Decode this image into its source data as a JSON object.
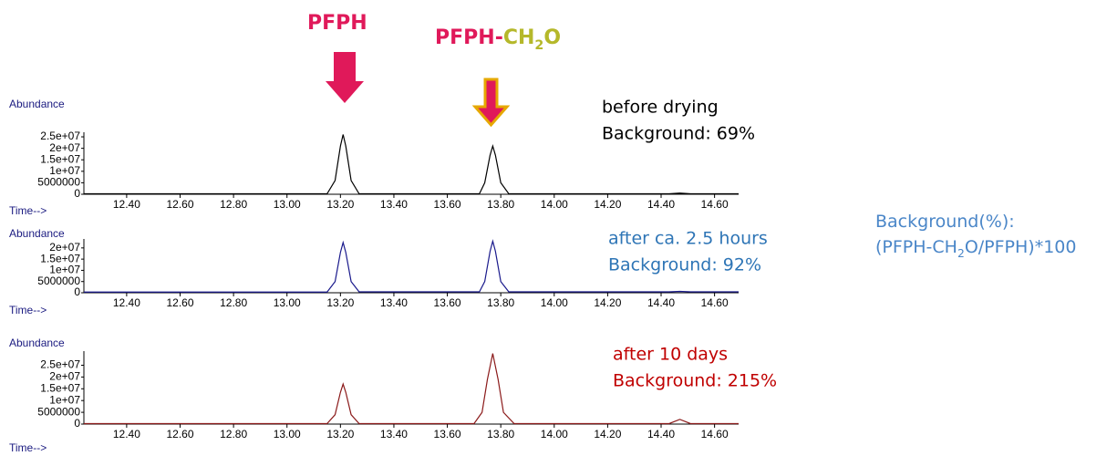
{
  "annotations": {
    "peak_labels": [
      {
        "parts": [
          {
            "text": "PFPH",
            "color": "#e0195a"
          }
        ]
      },
      {
        "parts": [
          {
            "text": "PFPH",
            "color": "#e0195a"
          },
          {
            "text": "-",
            "color": "#e0195a"
          },
          {
            "text": "CH",
            "color": "#b5b82a"
          },
          {
            "text": "2",
            "color": "#b5b82a",
            "sub": true
          },
          {
            "text": "O",
            "color": "#b5b82a"
          }
        ]
      }
    ],
    "formula": {
      "color": "#4a86c8",
      "lines": [
        [
          {
            "text": "Background(%):"
          }
        ],
        [
          {
            "text": "(PFPH-CH"
          },
          {
            "text": "2",
            "sub": true
          },
          {
            "text": "O/PFPH)*100"
          }
        ]
      ]
    }
  },
  "chart_data": [
    {
      "type": "line",
      "ylabel": "Abundance",
      "xlabel": "Time-->",
      "annotation": [
        "before drying",
        "Background: 69%"
      ],
      "annotation_color": "#000000",
      "x": [
        12.24,
        13.15,
        13.18,
        13.2,
        13.21,
        13.22,
        13.24,
        13.27,
        13.72,
        13.74,
        13.76,
        13.77,
        13.78,
        13.8,
        13.83,
        14.43,
        14.47,
        14.51,
        14.69
      ],
      "series": [
        {
          "color": "#000000",
          "values": [
            200000,
            200000,
            6000000,
            21000000,
            26000000,
            21000000,
            6000000,
            200000,
            200000,
            5000000,
            17000000,
            21000000,
            17000000,
            5000000,
            200000,
            200000,
            500000,
            200000,
            200000
          ]
        }
      ],
      "xlim": [
        12.24,
        14.69
      ],
      "ylim": [
        0,
        27000000
      ],
      "xticks": [
        {
          "value": 12.4,
          "label": "12.40"
        },
        {
          "value": 12.6,
          "label": "12.60"
        },
        {
          "value": 12.8,
          "label": "12.80"
        },
        {
          "value": 13.0,
          "label": "13.00"
        },
        {
          "value": 13.2,
          "label": "13.20"
        },
        {
          "value": 13.4,
          "label": "13.40"
        },
        {
          "value": 13.6,
          "label": "13.60"
        },
        {
          "value": 13.8,
          "label": "13.80"
        },
        {
          "value": 14.0,
          "label": "14.00"
        },
        {
          "value": 14.2,
          "label": "14.20"
        },
        {
          "value": 14.4,
          "label": "14.40"
        },
        {
          "value": 14.6,
          "label": "14.60"
        }
      ],
      "yticks": [
        0,
        5000000,
        {
          "value": 10000000,
          "label": "1e+07"
        },
        {
          "value": 15000000,
          "label": "1.5e+07"
        },
        {
          "value": 20000000,
          "label": "2e+07"
        },
        {
          "value": 25000000,
          "label": "2.5e+07"
        }
      ]
    },
    {
      "type": "line",
      "ylabel": "Abundance",
      "xlabel": "Time-->",
      "annotation": [
        "after ca. 2.5 hours",
        "Background: 92%"
      ],
      "annotation_color": "#2e75b6",
      "x": [
        12.24,
        13.15,
        13.18,
        13.2,
        13.21,
        13.22,
        13.24,
        13.27,
        13.72,
        13.74,
        13.76,
        13.77,
        13.78,
        13.8,
        13.83,
        14.43,
        14.47,
        14.51,
        14.69
      ],
      "series": [
        {
          "color": "#1a1a8c",
          "values": [
            300000,
            300000,
            5000000,
            18000000,
            22400000,
            18000000,
            5000000,
            400000,
            400000,
            5000000,
            18500000,
            23000000,
            18500000,
            5000000,
            400000,
            400000,
            600000,
            400000,
            400000
          ]
        }
      ],
      "xlim": [
        12.24,
        14.69
      ],
      "ylim": [
        0,
        24000000
      ],
      "xticks": [
        {
          "value": 12.4,
          "label": "12.40"
        },
        {
          "value": 12.6,
          "label": "12.60"
        },
        {
          "value": 12.8,
          "label": "12.80"
        },
        {
          "value": 13.0,
          "label": "13.00"
        },
        {
          "value": 13.2,
          "label": "13.20"
        },
        {
          "value": 13.4,
          "label": "13.40"
        },
        {
          "value": 13.6,
          "label": "13.60"
        },
        {
          "value": 13.8,
          "label": "13.80"
        },
        {
          "value": 14.0,
          "label": "14.00"
        },
        {
          "value": 14.2,
          "label": "14.20"
        },
        {
          "value": 14.4,
          "label": "14.40"
        },
        {
          "value": 14.6,
          "label": "14.60"
        }
      ],
      "yticks": [
        0,
        5000000,
        {
          "value": 10000000,
          "label": "1e+07"
        },
        {
          "value": 15000000,
          "label": "1.5e+07"
        },
        {
          "value": 20000000,
          "label": "2e+07"
        }
      ]
    },
    {
      "type": "line",
      "ylabel": "Abundance",
      "xlabel": "Time-->",
      "annotation": [
        "after 10 days",
        "Background: 215%"
      ],
      "annotation_color": "#c00000",
      "x": [
        12.24,
        13.15,
        13.18,
        13.2,
        13.21,
        13.22,
        13.24,
        13.27,
        13.7,
        13.73,
        13.75,
        13.77,
        13.79,
        13.81,
        13.85,
        14.43,
        14.47,
        14.51,
        14.69
      ],
      "series": [
        {
          "color": "#8b1a1a",
          "values": [
            200000,
            200000,
            4000000,
            13500000,
            17000000,
            13500000,
            4000000,
            200000,
            200000,
            5000000,
            19000000,
            30000000,
            19000000,
            5000000,
            200000,
            200000,
            2000000,
            200000,
            200000
          ]
        }
      ],
      "xlim": [
        12.24,
        14.69
      ],
      "ylim": [
        0,
        31000000
      ],
      "xticks": [
        {
          "value": 12.4,
          "label": "12.40"
        },
        {
          "value": 12.6,
          "label": "12.60"
        },
        {
          "value": 12.8,
          "label": "12.80"
        },
        {
          "value": 13.0,
          "label": "13.00"
        },
        {
          "value": 13.2,
          "label": "13.20"
        },
        {
          "value": 13.4,
          "label": "13.40"
        },
        {
          "value": 13.6,
          "label": "13.60"
        },
        {
          "value": 13.8,
          "label": "13.80"
        },
        {
          "value": 14.0,
          "label": "14.00"
        },
        {
          "value": 14.2,
          "label": "14.20"
        },
        {
          "value": 14.4,
          "label": "14.40"
        },
        {
          "value": 14.6,
          "label": "14.60"
        }
      ],
      "yticks": [
        0,
        5000000,
        {
          "value": 10000000,
          "label": "1e+07"
        },
        {
          "value": 15000000,
          "label": "1.5e+07"
        },
        {
          "value": 20000000,
          "label": "2e+07"
        },
        {
          "value": 25000000,
          "label": "2.5e+07"
        }
      ]
    }
  ]
}
